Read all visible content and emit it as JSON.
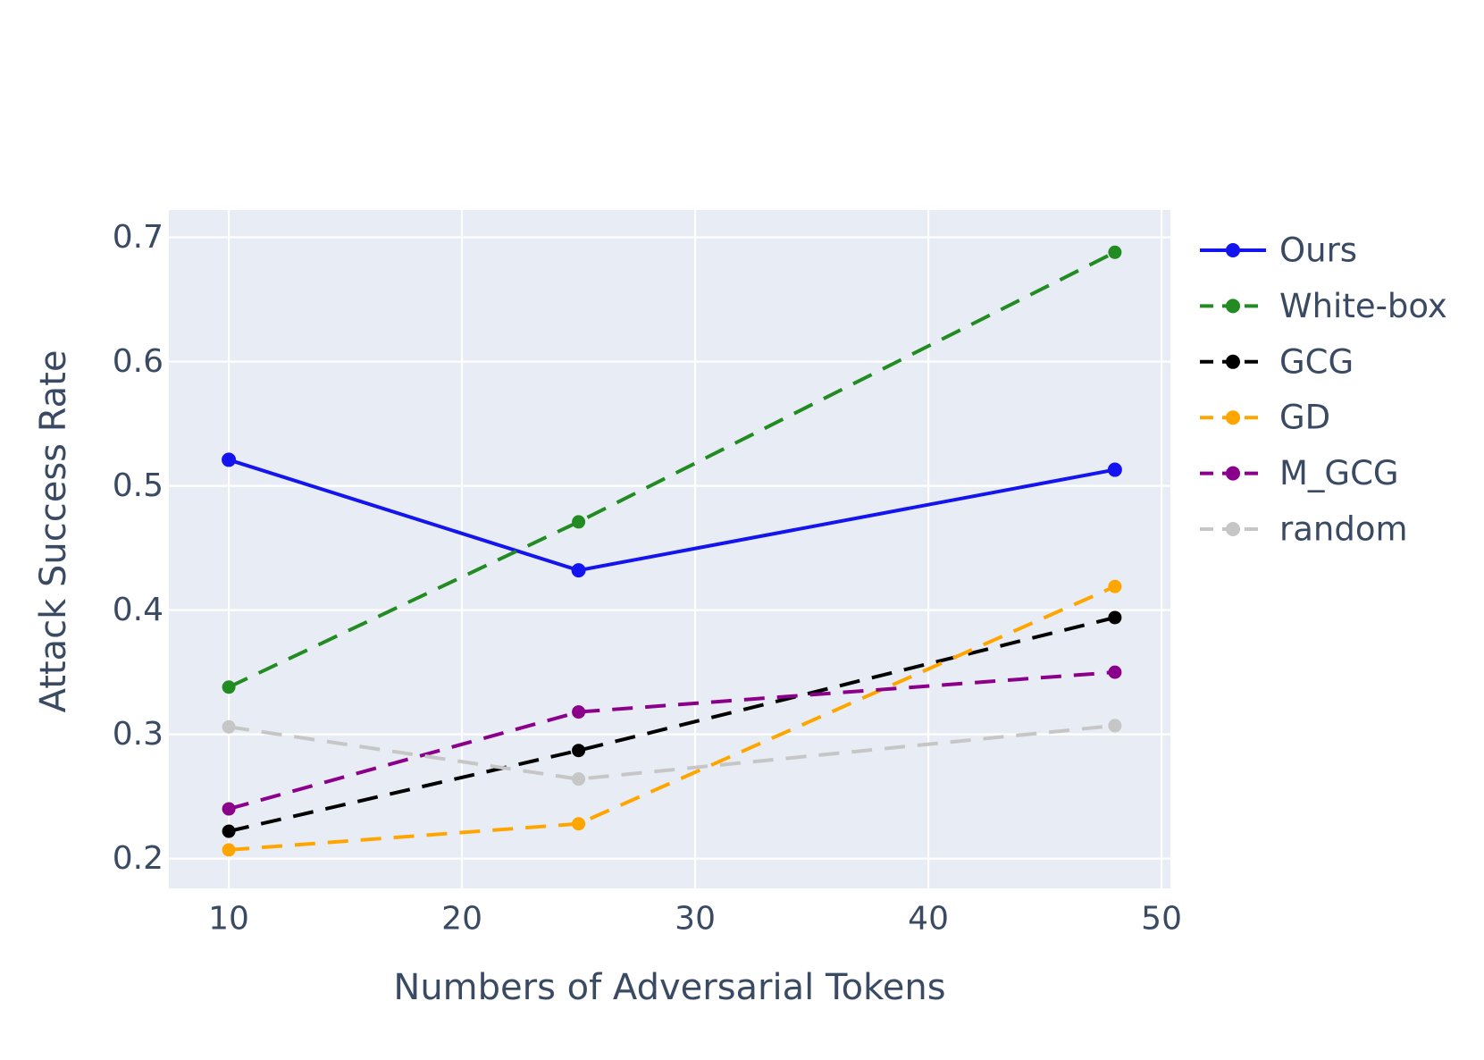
{
  "figure": {
    "background": "#ffffff",
    "plot_background": "#E8EDF5",
    "grid_color": "#FFFFFF",
    "text_color": "#3A4A63"
  },
  "chart_data": {
    "type": "line",
    "title": "",
    "xlabel": "Numbers of Adversarial Tokens",
    "ylabel": "Attack Success Rate",
    "x": [
      10,
      25,
      48
    ],
    "xticks": [
      10,
      20,
      30,
      40,
      50
    ],
    "xtick_labels": [
      "10",
      "20",
      "30",
      "40",
      "50"
    ],
    "yticks": [
      0.2,
      0.3,
      0.4,
      0.5,
      0.6,
      0.7
    ],
    "ytick_labels": [
      "0.2",
      "0.3",
      "0.4",
      "0.5",
      "0.6",
      "0.7"
    ],
    "xlim": [
      7.43,
      50.38
    ],
    "ylim": [
      0.176,
      0.722
    ],
    "grid": true,
    "legend_position": "right-outside",
    "series": [
      {
        "name": "Ours",
        "color": "#1414EE",
        "style": "solid",
        "marker": "circle",
        "values": [
          0.521,
          0.432,
          0.513
        ]
      },
      {
        "name": "White-box",
        "color": "#228B22",
        "style": "dashed",
        "marker": "circle",
        "values": [
          0.338,
          0.471,
          0.688
        ]
      },
      {
        "name": "GCG",
        "color": "#000000",
        "style": "dashed",
        "marker": "circle",
        "values": [
          0.222,
          0.287,
          0.394
        ]
      },
      {
        "name": "GD",
        "color": "#FFA500",
        "style": "dashed",
        "marker": "circle",
        "values": [
          0.207,
          0.228,
          0.419
        ]
      },
      {
        "name": "M_GCG",
        "color": "#8B008B",
        "style": "dashed",
        "marker": "circle",
        "values": [
          0.24,
          0.318,
          0.35
        ]
      },
      {
        "name": "random",
        "color": "#C6C6C6",
        "style": "dashed",
        "marker": "circle",
        "values": [
          0.306,
          0.264,
          0.307
        ]
      }
    ]
  }
}
